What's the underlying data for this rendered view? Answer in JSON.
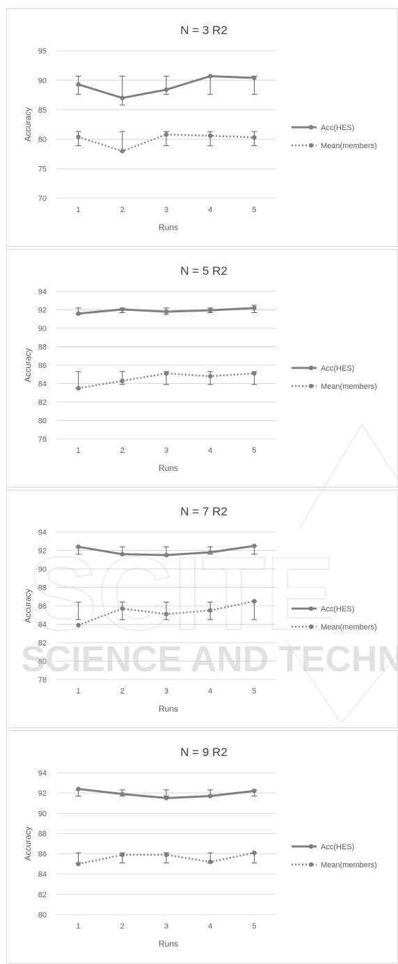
{
  "chart_data": [
    {
      "type": "line",
      "title": "N = 3   R2",
      "xlabel": "Runs",
      "ylabel": "Accuracy",
      "categories": [
        "1",
        "2",
        "3",
        "4",
        "5"
      ],
      "ylim": [
        70,
        95
      ],
      "yticks": [
        "70",
        "75",
        "80",
        "85",
        "90",
        "95"
      ],
      "legend_position": "right",
      "grid": true,
      "series": [
        {
          "name": "Acc(HES)",
          "style": "solid",
          "color": "#7f7f7f",
          "values": [
            89.3,
            87.0,
            88.4,
            90.7,
            90.4
          ],
          "err_low": [
            87.6,
            85.8,
            87.6,
            87.6,
            87.6
          ],
          "err_high": [
            90.7,
            90.7,
            90.7,
            90.7,
            90.7
          ]
        },
        {
          "name": "Mean(members)",
          "style": "dotted",
          "color": "#7f7f7f",
          "values": [
            80.4,
            78.0,
            80.8,
            80.6,
            80.3
          ],
          "err_low": [
            78.9,
            78.0,
            78.9,
            78.9,
            78.9
          ],
          "err_high": [
            81.3,
            81.3,
            81.3,
            81.3,
            81.3
          ]
        }
      ]
    },
    {
      "type": "line",
      "title": "N = 5   R2",
      "xlabel": "Runs",
      "ylabel": "Accuracy",
      "categories": [
        "1",
        "2",
        "3",
        "4",
        "5"
      ],
      "ylim": [
        78,
        94
      ],
      "yticks": [
        "78",
        "80",
        "82",
        "84",
        "86",
        "88",
        "90",
        "92",
        "94"
      ],
      "legend_position": "right",
      "grid": true,
      "series": [
        {
          "name": "Acc(HES)",
          "style": "solid",
          "color": "#7f7f7f",
          "values": [
            91.6,
            92.05,
            91.8,
            91.95,
            92.2
          ],
          "err_low": [
            91.5,
            91.7,
            91.5,
            91.7,
            91.7
          ],
          "err_high": [
            92.2,
            92.2,
            92.2,
            92.2,
            92.5
          ]
        },
        {
          "name": "Mean(members)",
          "style": "dotted",
          "color": "#7f7f7f",
          "values": [
            83.5,
            84.3,
            85.1,
            84.8,
            85.1
          ],
          "err_low": [
            83.5,
            83.9,
            83.9,
            83.9,
            83.9
          ],
          "err_high": [
            85.3,
            85.3,
            85.3,
            85.3,
            85.3
          ]
        }
      ]
    },
    {
      "type": "line",
      "title": "N = 7   R2",
      "xlabel": "Runs",
      "ylabel": "Accuracy",
      "categories": [
        "1",
        "2",
        "3",
        "4",
        "5"
      ],
      "ylim": [
        78,
        94
      ],
      "yticks": [
        "78",
        "80",
        "82",
        "84",
        "86",
        "88",
        "90",
        "92",
        "94"
      ],
      "legend_position": "right",
      "grid": true,
      "series": [
        {
          "name": "Acc(HES)",
          "style": "solid",
          "color": "#7f7f7f",
          "values": [
            92.4,
            91.6,
            91.5,
            91.8,
            92.5
          ],
          "err_low": [
            91.6,
            91.6,
            91.6,
            91.6,
            91.6
          ],
          "err_high": [
            92.4,
            92.4,
            92.4,
            92.4,
            92.5
          ]
        },
        {
          "name": "Mean(members)",
          "style": "dotted",
          "color": "#7f7f7f",
          "values": [
            83.9,
            85.7,
            85.1,
            85.5,
            86.5
          ],
          "err_low": [
            84.5,
            84.5,
            84.5,
            84.5,
            84.5
          ],
          "err_high": [
            86.4,
            86.4,
            86.4,
            86.4,
            86.5
          ]
        }
      ]
    },
    {
      "type": "line",
      "title": "N = 9   R2",
      "xlabel": "Runs",
      "ylabel": "Accuracy",
      "categories": [
        "1",
        "2",
        "3",
        "4",
        "5"
      ],
      "ylim": [
        80,
        94
      ],
      "yticks": [
        "80",
        "82",
        "84",
        "86",
        "88",
        "90",
        "92",
        "94"
      ],
      "legend_position": "right",
      "grid": true,
      "series": [
        {
          "name": "Acc(HES)",
          "style": "solid",
          "color": "#7f7f7f",
          "values": [
            92.4,
            91.9,
            91.5,
            91.7,
            92.2
          ],
          "err_low": [
            91.7,
            91.7,
            91.7,
            91.7,
            91.7
          ],
          "err_high": [
            92.3,
            92.3,
            92.3,
            92.3,
            92.3
          ]
        },
        {
          "name": "Mean(members)",
          "style": "dotted",
          "color": "#7f7f7f",
          "values": [
            85.0,
            85.9,
            85.9,
            85.2,
            86.1
          ],
          "err_low": [
            85.1,
            85.1,
            85.1,
            85.1,
            85.1
          ],
          "err_high": [
            86.1,
            86.1,
            86.1,
            86.1,
            86.1
          ]
        }
      ]
    }
  ],
  "colors": {
    "series": "#7f7f7f",
    "grid": "#d9d9d9",
    "text": "#595959",
    "title": "#404040",
    "watermark": "#bdbdbd"
  },
  "watermark": {
    "line1": "SCITE",
    "line2": "SCIENCE AND TECHN"
  }
}
